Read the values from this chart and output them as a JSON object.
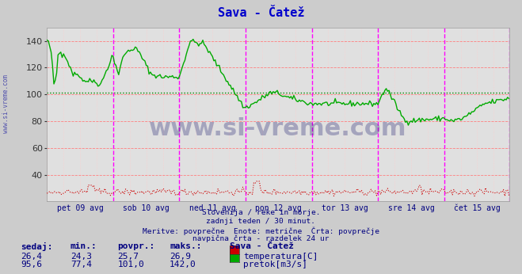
{
  "title": "Sava - Čatež",
  "title_color": "#0000cc",
  "bg_color": "#cccccc",
  "plot_bg_color": "#e0e0e0",
  "grid_color_major": "#ff8080",
  "grid_color_minor": "#ffcccc",
  "ylim": [
    20,
    150
  ],
  "yticks": [
    40,
    60,
    80,
    100,
    120,
    140
  ],
  "x_labels": [
    "pet 09 avg",
    "sob 10 avg",
    "ned 11 avg",
    "pon 12 avg",
    "tor 13 avg",
    "sre 14 avg",
    "čet 15 avg"
  ],
  "x_label_color": "#000080",
  "vline_color": "#ff00ff",
  "hline_avg_color": "#008800",
  "hline_avg_value": 101.0,
  "text_lines": [
    "Slovenija / reke in morje.",
    "zadnji teden / 30 minut.",
    "Meritve: povprečne  Enote: metrične  Črta: povprečje",
    "navpična črta - razdelek 24 ur"
  ],
  "text_color": "#000080",
  "watermark": "www.si-vreme.com",
  "sidebar_text": "www.si-vreme.com",
  "table_headers": [
    "sedaj:",
    "min.:",
    "povpr.:",
    "maks.:",
    "Sava - Čatež"
  ],
  "table_row1": [
    "26,4",
    "24,3",
    "25,7",
    "26,9",
    "temperatura[C]"
  ],
  "table_row2": [
    "95,6",
    "77,4",
    "101,0",
    "142,0",
    "pretok[m3/s]"
  ],
  "temp_color": "#cc0000",
  "flow_color": "#00aa00",
  "n_points": 336
}
